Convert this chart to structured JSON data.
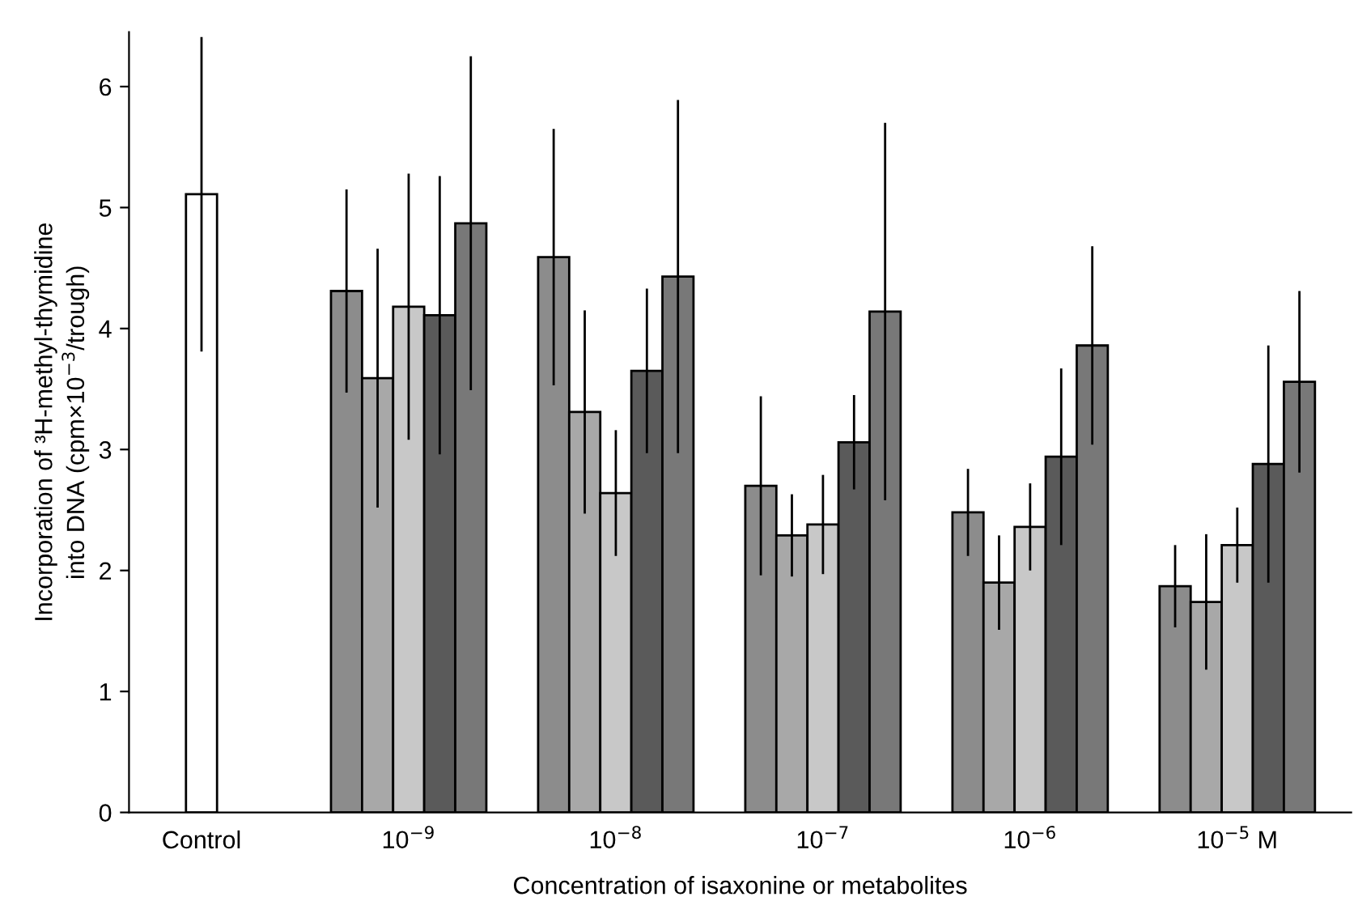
{
  "chart_data": {
    "type": "bar",
    "xlabel": "Concentration of isaxonine or metabolites",
    "ylabel": "Incorporation of ³H-methyl-thymidine\ninto DNA (cpm×10$^{−3}$/trough)",
    "categories": [
      "Control",
      "10$^{−9}$",
      "10$^{−8}$",
      "10$^{−7}$",
      "10$^{−6}$",
      "10$^{−5}$ M"
    ],
    "series": [
      {
        "color": "#ffffff",
        "values": [
          5.11,
          null,
          null,
          null,
          null,
          null
        ],
        "errors": [
          1.3,
          null,
          null,
          null,
          null,
          null
        ]
      },
      {
        "color": "#8c8c8c",
        "values": [
          null,
          4.31,
          4.59,
          2.7,
          2.48,
          1.87
        ],
        "errors": [
          null,
          0.84,
          1.06,
          0.74,
          0.36,
          0.34
        ]
      },
      {
        "color": "#a8a8a8",
        "values": [
          null,
          3.59,
          3.31,
          2.29,
          1.9,
          1.74
        ],
        "errors": [
          null,
          1.07,
          0.84,
          0.34,
          0.39,
          0.56
        ]
      },
      {
        "color": "#c8c8c8",
        "values": [
          null,
          4.18,
          2.64,
          2.38,
          2.36,
          2.21
        ],
        "errors": [
          null,
          1.1,
          0.52,
          0.41,
          0.36,
          0.31
        ]
      },
      {
        "color": "#5a5a5a",
        "values": [
          null,
          4.11,
          3.65,
          3.06,
          2.94,
          2.88
        ],
        "errors": [
          null,
          1.15,
          0.68,
          0.39,
          0.73,
          0.98
        ]
      },
      {
        "color": "#787878",
        "values": [
          null,
          4.87,
          4.43,
          4.14,
          3.86,
          3.56
        ],
        "errors": [
          null,
          1.38,
          1.46,
          1.56,
          0.82,
          0.75
        ]
      }
    ],
    "ylim": [
      0,
      6.45
    ],
    "yticks": [
      0,
      1,
      2,
      3,
      4,
      5,
      6
    ],
    "grid": false,
    "legend": false
  }
}
